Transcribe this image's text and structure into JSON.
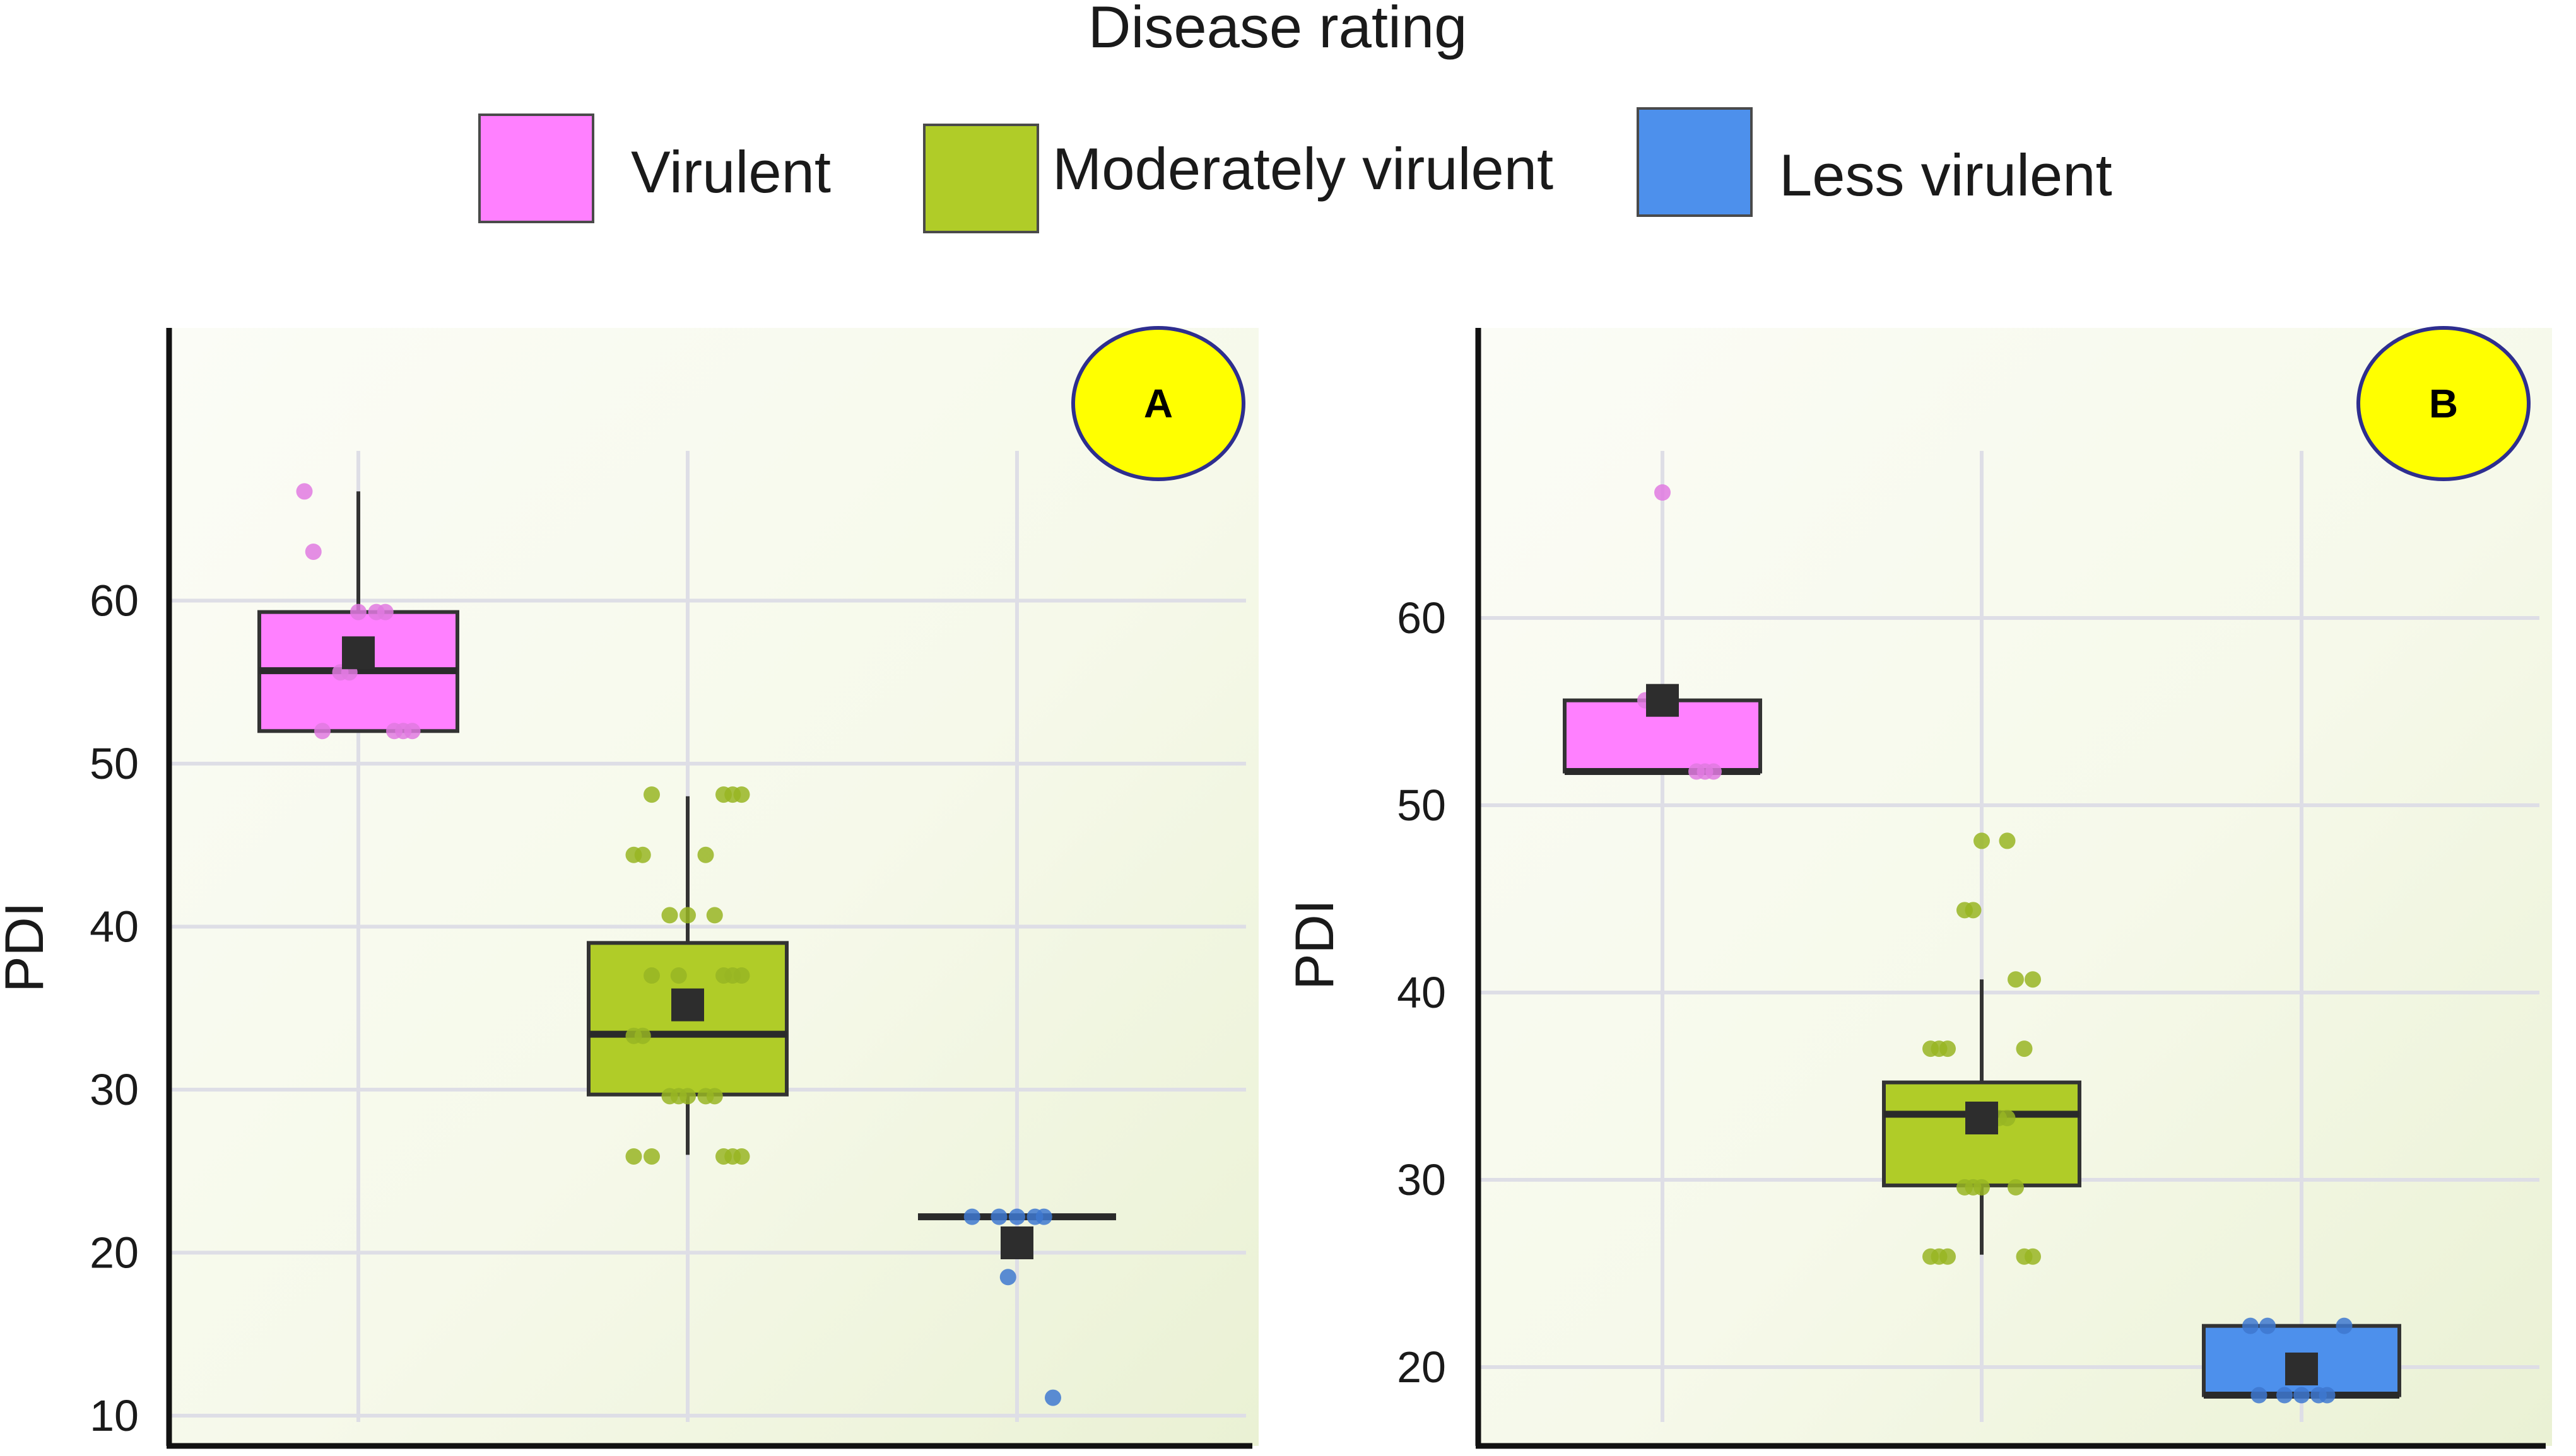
{
  "colors": {
    "virulent": "#ff80ff",
    "moderately_virulent": "#b0cc28",
    "less_virulent": "#4d90ec",
    "virulent_point": "#e07ae0",
    "moderately_virulent_point": "#98b523",
    "less_virulent_point": "#3e78d0",
    "mean_marker": "#2d2d2d",
    "grid": "#dedee6",
    "badge": "#ffff00",
    "badge_border": "#2e2e8f"
  },
  "legend": {
    "title": "Disease rating",
    "items": [
      {
        "key": "virulent",
        "label": "Virulent"
      },
      {
        "key": "moderately_virulent",
        "label": "Moderately virulent"
      },
      {
        "key": "less_virulent",
        "label": "Less virulent"
      }
    ]
  },
  "chart_data": [
    {
      "type": "boxplot",
      "panel": "A",
      "ylabel": "PDI",
      "xlabel": "",
      "ylim": [
        9,
        77
      ],
      "yticks": [
        10,
        20,
        30,
        40,
        50,
        60
      ],
      "grid": true,
      "groups": [
        {
          "key": "virulent",
          "name": "Virulent",
          "q1": 52,
          "median": 55.7,
          "q3": 59.3,
          "whisker_low": 52,
          "whisker_high": 66.7,
          "mean": 56.8,
          "points": [
            66.7,
            63,
            59.3,
            59.3,
            59.3,
            55.6,
            55.6,
            52,
            52,
            52,
            52
          ]
        },
        {
          "key": "moderately_virulent",
          "name": "Moderately virulent",
          "q1": 29.7,
          "median": 33.4,
          "q3": 39,
          "whisker_low": 26,
          "whisker_high": 48,
          "mean": 35.2,
          "points": [
            48.1,
            48.1,
            48.1,
            48.1,
            44.4,
            44.4,
            44.4,
            40.7,
            40.7,
            40.7,
            37,
            37,
            37,
            37,
            37,
            33.3,
            33.3,
            29.6,
            29.6,
            29.6,
            29.6,
            29.6,
            25.9,
            25.9,
            25.9,
            25.9,
            25.9
          ]
        },
        {
          "key": "less_virulent",
          "name": "Less virulent",
          "q1": 22.2,
          "median": 22.2,
          "q3": 22.2,
          "whisker_low": 22.2,
          "whisker_high": 22.2,
          "mean": 20.6,
          "points": [
            22.2,
            22.2,
            22.2,
            22.2,
            22.2,
            18.5,
            11.1
          ]
        }
      ]
    },
    {
      "type": "boxplot",
      "panel": "B",
      "ylabel": "PDI",
      "xlabel": "",
      "ylim": [
        16,
        77
      ],
      "yticks": [
        20,
        30,
        40,
        50,
        60
      ],
      "grid": true,
      "groups": [
        {
          "key": "virulent",
          "name": "Virulent",
          "q1": 51.8,
          "median": 51.8,
          "q3": 55.6,
          "whisker_low": 51.8,
          "whisker_high": 55.6,
          "mean": 55.6,
          "points": [
            66.7,
            55.6,
            55.6,
            51.8,
            51.8,
            51.8
          ]
        },
        {
          "key": "moderately_virulent",
          "name": "Moderately virulent",
          "q1": 29.7,
          "median": 33.5,
          "q3": 35.2,
          "whisker_low": 26,
          "whisker_high": 40.7,
          "mean": 33.3,
          "points": [
            48.1,
            48.1,
            44.4,
            44.4,
            40.7,
            40.7,
            37,
            37,
            37,
            37,
            33.3,
            33.3,
            29.6,
            29.6,
            29.6,
            29.6,
            25.9,
            25.9,
            25.9,
            25.9,
            25.9
          ]
        },
        {
          "key": "less_virulent",
          "name": "Less virulent",
          "q1": 18.5,
          "median": 18.5,
          "q3": 22.2,
          "whisker_low": 18.5,
          "whisker_high": 22.2,
          "mean": 19.9,
          "points": [
            22.2,
            22.2,
            22.2,
            18.5,
            18.5,
            18.5,
            18.5,
            18.5
          ]
        }
      ]
    }
  ]
}
